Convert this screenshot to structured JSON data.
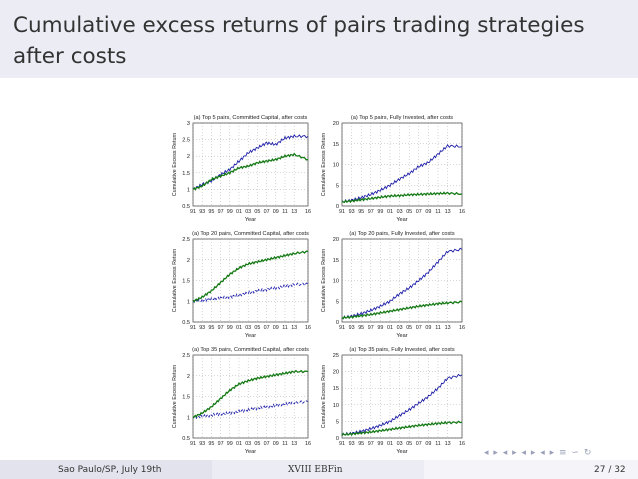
{
  "slide": {
    "title": "Cumulative excess returns of pairs trading strategies after costs",
    "footer_left": "Sao Paulo/SP, July 19th",
    "footer_center": "XVIII EBFin",
    "footer_page": "27 / 32",
    "nav_icons": "◂ ▸ ◂ ▸ ◂ ▸ ◂ ▸ ≡ ∽ ↻"
  },
  "colors": {
    "committed_like_blue": "#1f1fa8",
    "green": "#157a15"
  },
  "chart_data": [
    {
      "type": "line",
      "title": "(a) Top 5 pairs, Committed Capital, after costs",
      "xlabel": "Year",
      "ylabel": "Cumulative Excess Return",
      "x_ticks": [
        "91",
        "93",
        "95",
        "97",
        "99",
        "01",
        "03",
        "05",
        "07",
        "09",
        "11",
        "13",
        "16"
      ],
      "y_ticks": [
        "0.5",
        "1",
        "1.5",
        "2",
        "2.5",
        "3"
      ],
      "ylim": [
        0.5,
        3
      ],
      "grid": true,
      "x": [
        1991,
        1993,
        1995,
        1997,
        1999,
        2001,
        2003,
        2005,
        2007,
        2009,
        2011,
        2013,
        2016
      ],
      "series": [
        {
          "values": [
            1.0,
            1.15,
            1.25,
            1.45,
            1.6,
            1.85,
            2.1,
            2.25,
            2.4,
            2.35,
            2.55,
            2.6,
            2.6
          ]
        },
        {
          "values": [
            1.0,
            1.1,
            1.3,
            1.4,
            1.5,
            1.65,
            1.7,
            1.8,
            1.85,
            1.9,
            2.0,
            2.05,
            1.9
          ]
        }
      ]
    },
    {
      "type": "line",
      "title": "(a) Top 5 pairs, Fully Invested, after costs",
      "xlabel": "Year",
      "ylabel": "Cumulative Excess Return",
      "x_ticks": [
        "91",
        "93",
        "95",
        "97",
        "99",
        "01",
        "03",
        "05",
        "07",
        "09",
        "11",
        "13",
        "16"
      ],
      "y_ticks": [
        "0",
        "5",
        "10",
        "15",
        "20"
      ],
      "ylim": [
        0,
        20
      ],
      "grid": true,
      "x": [
        1991,
        1993,
        1995,
        1997,
        1999,
        2001,
        2003,
        2005,
        2007,
        2009,
        2011,
        2013,
        2016
      ],
      "series": [
        {
          "values": [
            1.0,
            1.4,
            2.0,
            2.8,
            3.8,
            5.0,
            6.5,
            7.8,
            9.5,
            10.5,
            12.5,
            14.5,
            14.3
          ]
        },
        {
          "values": [
            1.0,
            1.2,
            1.5,
            1.8,
            2.1,
            2.4,
            2.5,
            2.7,
            2.8,
            2.9,
            3.0,
            3.1,
            2.9
          ]
        }
      ]
    },
    {
      "type": "line",
      "title": "(a) Top 20 pairs, Committed Capital, after costs",
      "xlabel": "Year",
      "ylabel": "Cumulative Excess Return",
      "x_ticks": [
        "91",
        "93",
        "95",
        "97",
        "99",
        "01",
        "03",
        "05",
        "07",
        "09",
        "11",
        "13",
        "16"
      ],
      "y_ticks": [
        "0.5",
        "1",
        "1.5",
        "2",
        "2.5"
      ],
      "ylim": [
        0.5,
        2.5
      ],
      "grid": true,
      "x": [
        1991,
        1993,
        1995,
        1997,
        1999,
        2001,
        2003,
        2005,
        2007,
        2009,
        2011,
        2013,
        2016
      ],
      "series": [
        {
          "values": [
            1.0,
            1.02,
            1.05,
            1.08,
            1.1,
            1.15,
            1.2,
            1.25,
            1.28,
            1.32,
            1.36,
            1.4,
            1.42
          ]
        },
        {
          "values": [
            1.0,
            1.1,
            1.25,
            1.45,
            1.65,
            1.8,
            1.9,
            1.95,
            2.0,
            2.05,
            2.1,
            2.15,
            2.2
          ]
        }
      ]
    },
    {
      "type": "line",
      "title": "(a) Top 20 pairs, Fully Invested, after costs",
      "xlabel": "Year",
      "ylabel": "Cumulative Excess Return",
      "x_ticks": [
        "91",
        "93",
        "95",
        "97",
        "99",
        "01",
        "03",
        "05",
        "07",
        "09",
        "11",
        "13",
        "16"
      ],
      "y_ticks": [
        "0",
        "5",
        "10",
        "15",
        "20"
      ],
      "ylim": [
        0,
        20
      ],
      "grid": true,
      "x": [
        1991,
        1993,
        1995,
        1997,
        1999,
        2001,
        2003,
        2005,
        2007,
        2009,
        2011,
        2013,
        2016
      ],
      "series": [
        {
          "values": [
            1.0,
            1.4,
            2.0,
            2.8,
            3.8,
            5.0,
            6.8,
            8.2,
            10.0,
            12.0,
            14.5,
            17.0,
            17.5
          ]
        },
        {
          "values": [
            1.0,
            1.2,
            1.5,
            1.8,
            2.2,
            2.6,
            3.0,
            3.4,
            3.8,
            4.1,
            4.4,
            4.6,
            4.8
          ]
        }
      ]
    },
    {
      "type": "line",
      "title": "(a) Top 35 pairs, Committed Capital, after costs",
      "xlabel": "Year",
      "ylabel": "Cumulative Excess Return",
      "x_ticks": [
        "91",
        "93",
        "95",
        "97",
        "99",
        "01",
        "03",
        "05",
        "07",
        "09",
        "11",
        "13",
        "16"
      ],
      "y_ticks": [
        "0.5",
        "1",
        "1.5",
        "2",
        "2.5"
      ],
      "ylim": [
        0.5,
        2.5
      ],
      "grid": true,
      "x": [
        1991,
        1993,
        1995,
        1997,
        1999,
        2001,
        2003,
        2005,
        2007,
        2009,
        2011,
        2013,
        2016
      ],
      "series": [
        {
          "values": [
            1.0,
            1.02,
            1.05,
            1.08,
            1.1,
            1.14,
            1.18,
            1.22,
            1.25,
            1.28,
            1.32,
            1.35,
            1.38
          ]
        },
        {
          "values": [
            1.0,
            1.1,
            1.25,
            1.45,
            1.65,
            1.8,
            1.88,
            1.94,
            1.98,
            2.02,
            2.06,
            2.1,
            2.1
          ]
        }
      ]
    },
    {
      "type": "line",
      "title": "(a) Top 35 pairs, Fully Invested, after costs",
      "xlabel": "Year",
      "ylabel": "Cumulative Excess Return",
      "x_ticks": [
        "91",
        "93",
        "95",
        "97",
        "99",
        "01",
        "03",
        "05",
        "07",
        "09",
        "11",
        "13",
        "16"
      ],
      "y_ticks": [
        "0",
        "5",
        "10",
        "15",
        "20",
        "25"
      ],
      "ylim": [
        0,
        25
      ],
      "grid": true,
      "x": [
        1991,
        1993,
        1995,
        1997,
        1999,
        2001,
        2003,
        2005,
        2007,
        2009,
        2011,
        2013,
        2016
      ],
      "series": [
        {
          "values": [
            1.0,
            1.4,
            2.0,
            2.8,
            3.8,
            5.0,
            6.8,
            8.5,
            10.5,
            12.5,
            15.0,
            18.0,
            19.0
          ]
        },
        {
          "values": [
            1.0,
            1.2,
            1.5,
            1.8,
            2.2,
            2.6,
            3.0,
            3.4,
            3.8,
            4.1,
            4.4,
            4.6,
            4.8
          ]
        }
      ]
    }
  ]
}
